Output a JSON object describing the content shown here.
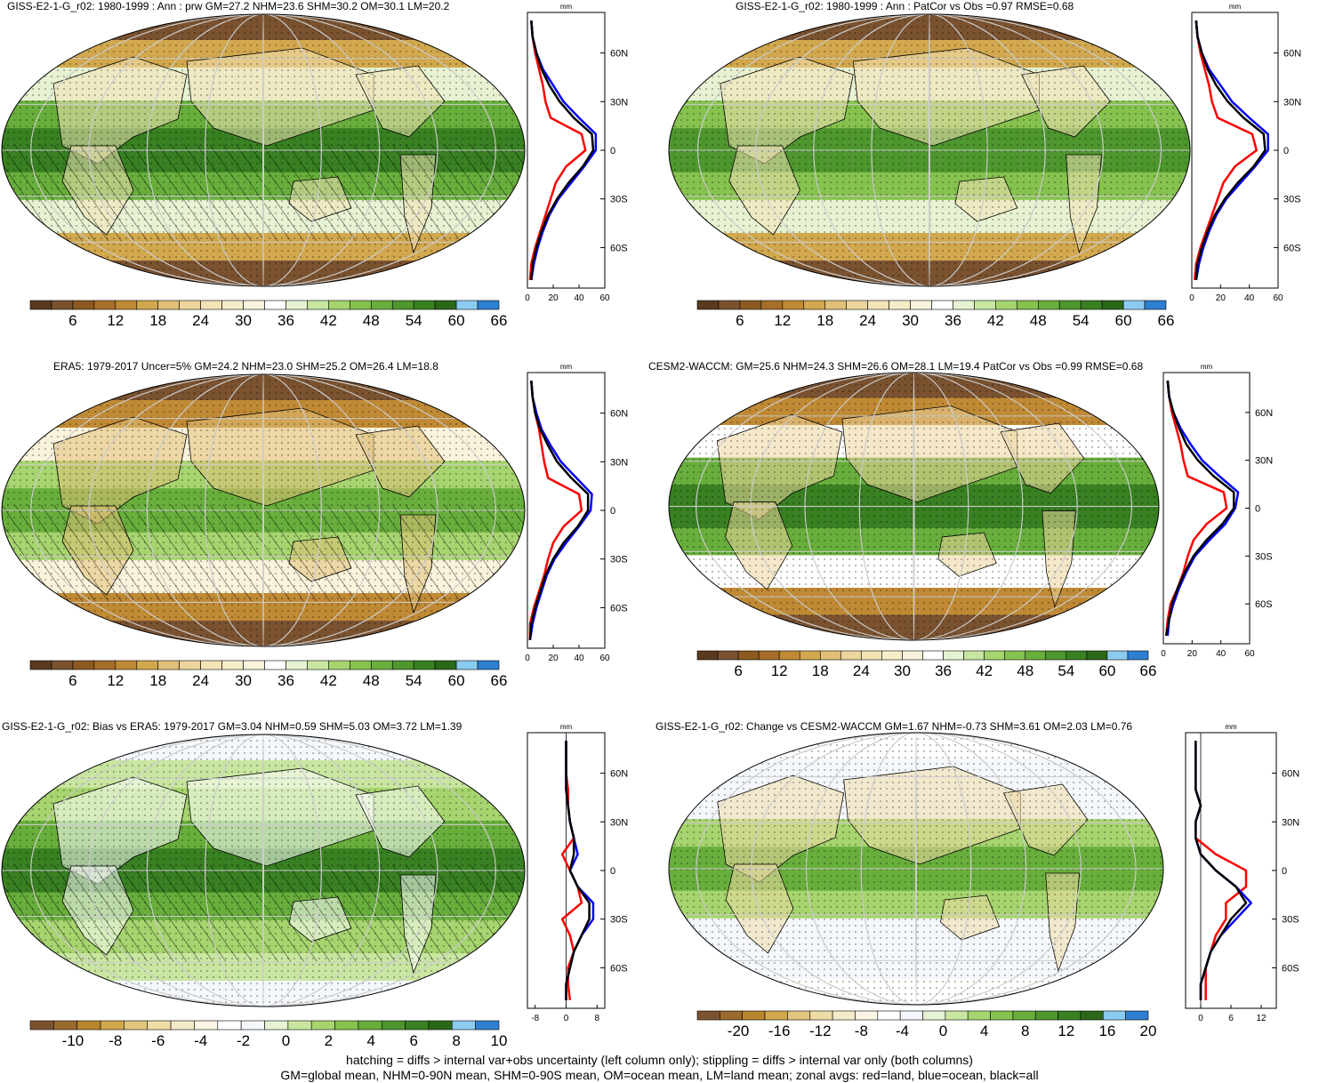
{
  "colors": {
    "land": "#ff0000",
    "ocean": "#0000ff",
    "all": "#000000",
    "abs_palette": [
      "#5a3a1e",
      "#7a5230",
      "#8c5a20",
      "#a66e28",
      "#c08a35",
      "#d2a84e",
      "#e0c078",
      "#ecd59c",
      "#f3e4b6",
      "#f7edc8",
      "#faf3dc",
      "#ffffff",
      "#e6f2d2",
      "#c8e6a0",
      "#a6d46e",
      "#86c24e",
      "#68ae3c",
      "#4e962e",
      "#388022",
      "#2a6818",
      "#8ccbf0",
      "#2f7fd0"
    ],
    "diff_palette": [
      "#7a5230",
      "#9a6a2e",
      "#b8862c",
      "#d2a84e",
      "#e2c67e",
      "#eedba6",
      "#f6ebc8",
      "#faf5e4",
      "#ffffff",
      "#f4f8fc",
      "#e6f2d2",
      "#c8e6a0",
      "#a6d46e",
      "#86c24e",
      "#68ae3c",
      "#4e962e",
      "#388022",
      "#2a6818",
      "#8ccbf0",
      "#2f7fd0"
    ]
  },
  "colorbars": {
    "abs_labels": [
      "6",
      "12",
      "18",
      "24",
      "30",
      "36",
      "42",
      "48",
      "54",
      "60",
      "66"
    ],
    "diff10_labels": [
      "-10",
      "-8",
      "-6",
      "-4",
      "-2",
      "0",
      "2",
      "4",
      "6",
      "8",
      "10"
    ],
    "diff20_labels": [
      "-20",
      "-16",
      "-12",
      "-8",
      "-4",
      "0",
      "4",
      "8",
      "12",
      "16",
      "20"
    ]
  },
  "panels": [
    {
      "title": "GISS-E2-1-G_r02: 1980-1999 : Ann : prw GM=27.2 NHM=23.6 SHM=30.2 OM=30.1 LM=20.2",
      "colorbar": "abs",
      "palette": "abs",
      "hatching": true,
      "zonal_plot": {
        "unit": "mm",
        "x_ticks": [
          "0",
          "20",
          "40",
          "60"
        ],
        "y_ticks": [
          "60N",
          "30N",
          "0",
          "30S",
          "60S"
        ]
      },
      "map_fill": {
        "polar": 1,
        "mid": 5,
        "subtrop": 12,
        "tropic": 16
      }
    },
    {
      "title": "GISS-E2-1-G_r02: 1980-1999 : Ann : PatCor vs Obs =0.97 RMSE=0.68",
      "colorbar": "abs",
      "palette": "abs",
      "hatching": false,
      "zonal_plot": {
        "unit": "mm",
        "x_ticks": [
          "0",
          "20",
          "40",
          "60"
        ],
        "y_ticks": [
          "60N",
          "30N",
          "0",
          "30S",
          "60S"
        ]
      },
      "map_fill": {
        "polar": 1,
        "mid": 5,
        "subtrop": 12,
        "tropic": 15
      }
    },
    {
      "title": "ERA5: 1979-2017 Uncer=5% GM=24.2 NHM=23.0 SHM=25.2 OM=26.4 LM=18.8",
      "colorbar": "abs",
      "palette": "abs",
      "hatching": true,
      "zonal_plot": {
        "unit": "mm",
        "x_ticks": [
          "0",
          "20",
          "40",
          "60"
        ],
        "y_ticks": [
          "60N",
          "30N",
          "0",
          "30S",
          "60S"
        ]
      },
      "map_fill": {
        "polar": 1,
        "mid": 4,
        "subtrop": 10,
        "tropic": 14
      }
    },
    {
      "title": "CESM2-WACCM: GM=25.6 NHM=24.3 SHM=26.6 OM=28.1 LM=19.4 PatCor vs Obs =0.99 RMSE=0.68",
      "colorbar": "abs",
      "palette": "abs",
      "hatching": false,
      "zonal_plot": {
        "unit": "mm",
        "x_ticks": [
          "0",
          "20",
          "40",
          "60"
        ],
        "y_ticks": [
          "60N",
          "30N",
          "0",
          "30S",
          "60S"
        ]
      },
      "map_fill": {
        "polar": 1,
        "mid": 4,
        "subtrop": 11,
        "tropic": 16
      }
    },
    {
      "title": "GISS-E2-1-G_r02: Bias vs ERA5: 1979-2017 GM=3.04 NHM=0.59 SHM=5.03 OM=3.72 LM=1.39",
      "colorbar": "diff10",
      "palette": "diff",
      "hatching": true,
      "zonal_plot": {
        "unit": "mm",
        "x_ticks": [
          "-8",
          "0",
          "8"
        ],
        "y_ticks": [
          "60N",
          "30N",
          "0",
          "30S",
          "60S"
        ]
      },
      "map_fill": {
        "polar": 9,
        "mid": 11,
        "subtrop": 12,
        "tropic": 14
      }
    },
    {
      "title": "GISS-E2-1-G_r02: Change vs CESM2-WACCM GM=1.67 NHM=-0.73 SHM=3.61 OM=2.03 LM=0.76",
      "colorbar": "diff20",
      "palette": "diff",
      "hatching": false,
      "zonal_plot": {
        "unit": "mm",
        "x_ticks": [
          "0",
          "6",
          "12"
        ],
        "y_ticks": [
          "60N",
          "30N",
          "0",
          "30S",
          "60S"
        ]
      },
      "map_fill": {
        "polar": 8,
        "mid": 9,
        "subtrop": 9,
        "tropic": 12
      }
    }
  ],
  "chart_data": {
    "type": "line",
    "description_units": "zonal-mean precipitable water (mm) vs latitude; series: red=land, blue=ocean, black=all",
    "latitude": [
      -80,
      -70,
      -60,
      -50,
      -40,
      -30,
      -20,
      -10,
      0,
      10,
      20,
      30,
      40,
      50,
      60,
      70,
      80
    ],
    "panels": [
      {
        "xlim": [
          0,
          60
        ],
        "series": [
          {
            "name": "land",
            "values": [
              2,
              3,
              6,
              10,
              14,
              18,
              22,
              30,
              45,
              42,
              18,
              14,
              12,
              9,
              6,
              4,
              3
            ]
          },
          {
            "name": "ocean",
            "values": [
              3,
              5,
              8,
              12,
              17,
              24,
              34,
              44,
              53,
              53,
              40,
              28,
              20,
              12,
              7,
              4,
              3
            ]
          },
          {
            "name": "all",
            "values": [
              3,
              4,
              7,
              11,
              16,
              23,
              32,
              43,
              51,
              50,
              36,
              25,
              17,
              11,
              7,
              4,
              3
            ]
          }
        ]
      },
      {
        "xlim": [
          0,
          60
        ],
        "series": [
          {
            "name": "land",
            "values": [
              2,
              3,
              6,
              10,
              14,
              18,
              22,
              30,
              45,
              42,
              18,
              14,
              12,
              9,
              6,
              4,
              3
            ]
          },
          {
            "name": "ocean",
            "values": [
              3,
              5,
              8,
              12,
              17,
              24,
              34,
              44,
              53,
              53,
              40,
              28,
              20,
              12,
              7,
              4,
              3
            ]
          },
          {
            "name": "all",
            "values": [
              3,
              4,
              7,
              11,
              16,
              23,
              32,
              43,
              51,
              50,
              36,
              25,
              17,
              11,
              7,
              4,
              3
            ]
          }
        ]
      },
      {
        "xlim": [
          0,
          60
        ],
        "series": [
          {
            "name": "land",
            "values": [
              2,
              2,
              5,
              9,
              13,
              16,
              20,
              28,
              42,
              40,
              16,
              13,
              11,
              9,
              6,
              4,
              3
            ]
          },
          {
            "name": "ocean",
            "values": [
              2,
              4,
              7,
              11,
              15,
              21,
              30,
              40,
              49,
              50,
              38,
              26,
              18,
              11,
              7,
              4,
              3
            ]
          },
          {
            "name": "all",
            "values": [
              2,
              3,
              6,
              10,
              14,
              20,
              28,
              39,
              47,
              47,
              34,
              23,
              16,
              10,
              6,
              4,
              3
            ]
          }
        ]
      },
      {
        "xlim": [
          0,
          60
        ],
        "series": [
          {
            "name": "land",
            "values": [
              2,
              3,
              5,
              10,
              14,
              17,
              21,
              30,
              44,
              42,
              17,
              14,
              12,
              9,
              6,
              4,
              3
            ]
          },
          {
            "name": "ocean",
            "values": [
              3,
              4,
              7,
              11,
              16,
              22,
              32,
              43,
              50,
              52,
              39,
              27,
              19,
              12,
              7,
              4,
              3
            ]
          },
          {
            "name": "all",
            "values": [
              2,
              4,
              6,
              10,
              15,
              21,
              30,
              41,
              49,
              49,
              35,
              24,
              16,
              11,
              7,
              4,
              3
            ]
          }
        ]
      },
      {
        "xlim": [
          -10,
          10
        ],
        "series": [
          {
            "name": "land",
            "values": [
              1,
              0.5,
              0.5,
              2,
              1,
              -1,
              4,
              3,
              1,
              -1,
              2,
              1,
              0.5,
              0.5,
              0,
              0,
              0
            ]
          },
          {
            "name": "ocean",
            "values": [
              0,
              0,
              1,
              2,
              4,
              7,
              7,
              3,
              1,
              3,
              2,
              1,
              0.5,
              0,
              0,
              0,
              0
            ]
          },
          {
            "name": "all",
            "values": [
              0,
              0,
              1,
              2,
              4,
              6,
              6,
              3,
              1,
              2,
              2,
              1,
              0.5,
              0,
              0,
              0,
              0
            ]
          }
        ]
      },
      {
        "xlim": [
          -3,
          15
        ],
        "series": [
          {
            "name": "land",
            "values": [
              1,
              1,
              1,
              2,
              3,
              5,
              5,
              9,
              9,
              3,
              -1,
              -1,
              0,
              -1,
              -1,
              -1,
              -1
            ]
          },
          {
            "name": "ocean",
            "values": [
              0,
              0,
              1,
              2,
              4,
              7,
              10,
              7,
              3,
              0,
              -1,
              -1,
              0,
              -1,
              -1,
              -1,
              -1
            ]
          },
          {
            "name": "all",
            "values": [
              0,
              0,
              1,
              2,
              4,
              6,
              9,
              7,
              3,
              0,
              -1,
              -1,
              0,
              -1,
              -1,
              -1,
              -1
            ]
          }
        ]
      }
    ]
  },
  "footer": {
    "line1": "hatching = diffs > internal var+obs uncertainty (left column only); stippling = diffs > internal var only (both columns)",
    "line2": "GM=global mean, NHM=0-90N mean, SHM=0-90S mean, OM=ocean mean, LM=land mean; zonal avgs: red=land, blue=ocean, black=all"
  }
}
